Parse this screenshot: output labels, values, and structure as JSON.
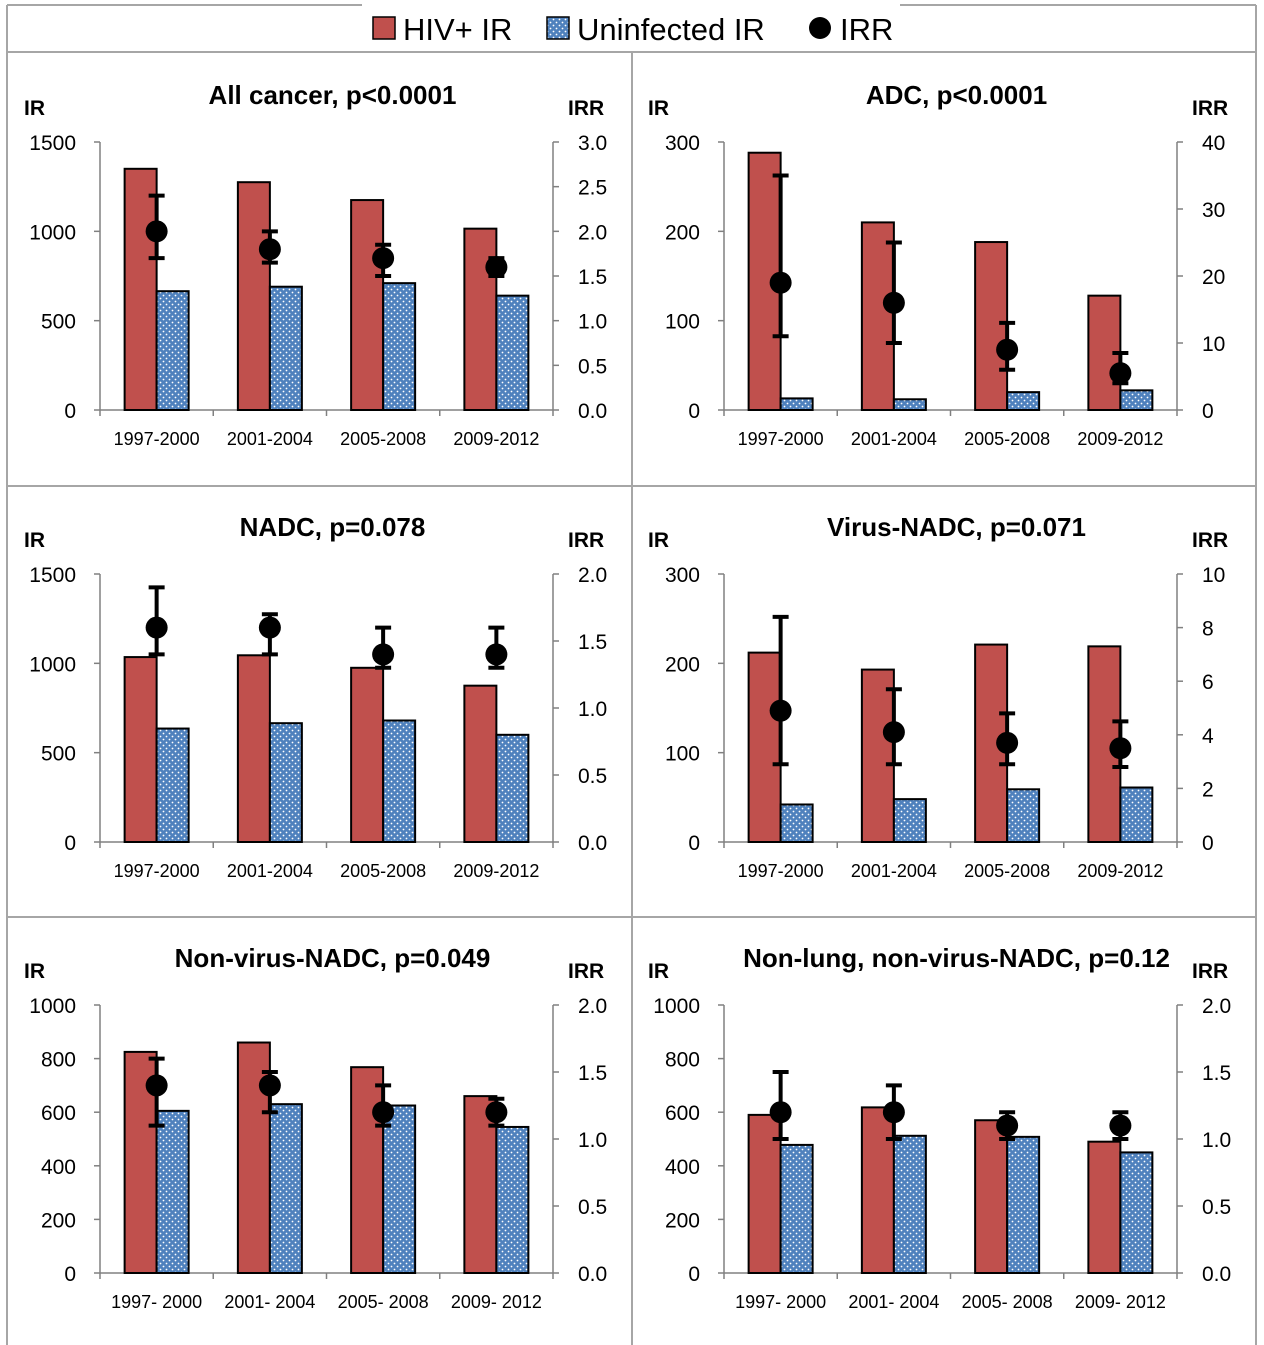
{
  "legend": {
    "items": [
      {
        "label": "HIV+ IR",
        "marker": "square",
        "color": "#c0504d"
      },
      {
        "label": "Uninfected IR",
        "marker": "dotted-square",
        "color": "#4f81bd"
      },
      {
        "label": "IRR",
        "marker": "circle",
        "color": "#000000"
      }
    ]
  },
  "colors": {
    "hiv": "#c0504d",
    "uninfected": "#4f81bd",
    "irr": "#000000",
    "panel_border": "#a6a6a6"
  },
  "chart_data": [
    {
      "type": "bar",
      "title": "All cancer, p<0.0001",
      "left_label": "IR",
      "right_label": "IRR",
      "categories": [
        "1997-2000",
        "2001-2004",
        "2005-2008",
        "2009-2012"
      ],
      "ylim": [
        0,
        1500
      ],
      "yticks": [
        "0",
        "500",
        "1000",
        "1500"
      ],
      "y2lim": [
        0,
        3.0
      ],
      "y2ticks": [
        "0.0",
        "0.5",
        "1.0",
        "1.5",
        "2.0",
        "2.5",
        "3.0"
      ],
      "series": [
        {
          "name": "HIV+ IR",
          "values": [
            1350,
            1275,
            1175,
            1015
          ]
        },
        {
          "name": "Uninfected IR",
          "values": [
            665,
            690,
            710,
            640
          ]
        },
        {
          "name": "IRR",
          "axis": "right",
          "values": [
            2.0,
            1.8,
            1.7,
            1.6
          ],
          "ci_low": [
            1.7,
            1.65,
            1.5,
            1.5
          ],
          "ci_high": [
            2.4,
            2.0,
            1.85,
            1.7
          ]
        }
      ]
    },
    {
      "type": "bar",
      "title": "ADC, p<0.0001",
      "left_label": "IR",
      "right_label": "IRR",
      "categories": [
        "1997-2000",
        "2001-2004",
        "2005-2008",
        "2009-2012"
      ],
      "ylim": [
        0,
        300
      ],
      "yticks": [
        "0",
        "100",
        "200",
        "300"
      ],
      "y2lim": [
        0,
        40
      ],
      "y2ticks": [
        "0",
        "10",
        "20",
        "30",
        "40"
      ],
      "series": [
        {
          "name": "HIV+ IR",
          "values": [
            288,
            210,
            188,
            128
          ]
        },
        {
          "name": "Uninfected IR",
          "values": [
            13,
            12,
            20,
            22
          ]
        },
        {
          "name": "IRR",
          "axis": "right",
          "values": [
            19,
            16,
            9,
            5.5
          ],
          "ci_low": [
            11,
            10,
            6,
            4
          ],
          "ci_high": [
            35,
            25,
            13,
            8.5
          ]
        }
      ]
    },
    {
      "type": "bar",
      "title": "NADC, p=0.078",
      "left_label": "IR",
      "right_label": "IRR",
      "categories": [
        "1997-2000",
        "2001-2004",
        "2005-2008",
        "2009-2012"
      ],
      "ylim": [
        0,
        1500
      ],
      "yticks": [
        "0",
        "500",
        "1000",
        "1500"
      ],
      "y2lim": [
        0,
        2.0
      ],
      "y2ticks": [
        "0.0",
        "0.5",
        "1.0",
        "1.5",
        "2.0"
      ],
      "series": [
        {
          "name": "HIV+ IR",
          "values": [
            1035,
            1045,
            975,
            875
          ]
        },
        {
          "name": "Uninfected IR",
          "values": [
            635,
            665,
            680,
            600
          ]
        },
        {
          "name": "IRR",
          "axis": "right",
          "values": [
            1.6,
            1.6,
            1.4,
            1.4
          ],
          "ci_low": [
            1.4,
            1.4,
            1.3,
            1.3
          ],
          "ci_high": [
            1.9,
            1.7,
            1.6,
            1.6
          ]
        }
      ]
    },
    {
      "type": "bar",
      "title": "Virus-NADC, p=0.071",
      "left_label": "IR",
      "right_label": "IRR",
      "categories": [
        "1997-2000",
        "2001-2004",
        "2005-2008",
        "2009-2012"
      ],
      "ylim": [
        0,
        300
      ],
      "yticks": [
        "0",
        "100",
        "200",
        "300"
      ],
      "y2lim": [
        0,
        10
      ],
      "y2ticks": [
        "0",
        "2",
        "4",
        "6",
        "8",
        "10"
      ],
      "series": [
        {
          "name": "HIV+ IR",
          "values": [
            212,
            193,
            221,
            219
          ]
        },
        {
          "name": "Uninfected IR",
          "values": [
            42,
            48,
            59,
            61
          ]
        },
        {
          "name": "IRR",
          "axis": "right",
          "values": [
            4.9,
            4.1,
            3.7,
            3.5
          ],
          "ci_low": [
            2.9,
            2.9,
            2.9,
            2.8
          ],
          "ci_high": [
            8.4,
            5.7,
            4.8,
            4.5
          ]
        }
      ]
    },
    {
      "type": "bar",
      "title": "Non-virus-NADC, p=0.049",
      "left_label": "IR",
      "right_label": "IRR",
      "categories": [
        "1997- 2000",
        "2001- 2004",
        "2005- 2008",
        "2009- 2012"
      ],
      "ylim": [
        0,
        1000
      ],
      "yticks": [
        "0",
        "200",
        "400",
        "600",
        "800",
        "1000"
      ],
      "y2lim": [
        0,
        2.0
      ],
      "y2ticks": [
        "0.0",
        "0.5",
        "1.0",
        "1.5",
        "2.0"
      ],
      "series": [
        {
          "name": "HIV+ IR",
          "values": [
            825,
            860,
            768,
            660
          ]
        },
        {
          "name": "Uninfected IR",
          "values": [
            605,
            630,
            625,
            545
          ]
        },
        {
          "name": "IRR",
          "axis": "right",
          "values": [
            1.4,
            1.4,
            1.2,
            1.2
          ],
          "ci_low": [
            1.1,
            1.2,
            1.1,
            1.1
          ],
          "ci_high": [
            1.6,
            1.5,
            1.4,
            1.3
          ]
        }
      ]
    },
    {
      "type": "bar",
      "title": "Non-lung, non-virus-NADC, p=0.12",
      "left_label": "IR",
      "right_label": "IRR",
      "categories": [
        "1997- 2000",
        "2001- 2004",
        "2005- 2008",
        "2009- 2012"
      ],
      "ylim": [
        0,
        1000
      ],
      "yticks": [
        "0",
        "200",
        "400",
        "600",
        "800",
        "1000"
      ],
      "y2lim": [
        0,
        2.0
      ],
      "y2ticks": [
        "0.0",
        "0.5",
        "1.0",
        "1.5",
        "2.0"
      ],
      "series": [
        {
          "name": "HIV+ IR",
          "values": [
            590,
            618,
            570,
            490
          ]
        },
        {
          "name": "Uninfected IR",
          "values": [
            478,
            512,
            508,
            450
          ]
        },
        {
          "name": "IRR",
          "axis": "right",
          "values": [
            1.2,
            1.2,
            1.1,
            1.1
          ],
          "ci_low": [
            1.0,
            1.0,
            1.0,
            1.0
          ],
          "ci_high": [
            1.5,
            1.4,
            1.2,
            1.2
          ]
        }
      ]
    }
  ]
}
